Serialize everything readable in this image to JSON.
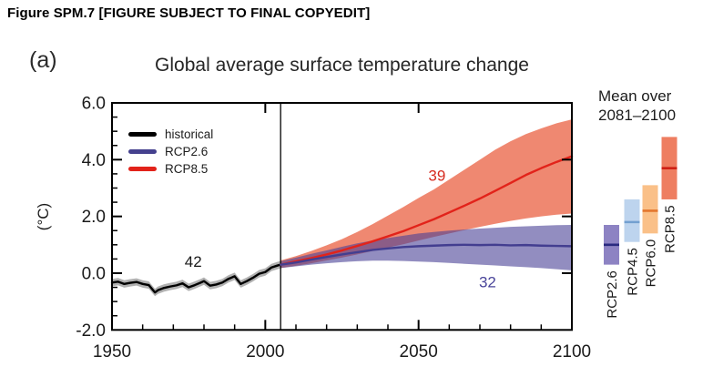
{
  "header": "Figure SPM.7 [FIGURE SUBJECT TO FINAL COPYEDIT]",
  "panel_label": "(a)",
  "chart_data": {
    "type": "line",
    "title": "Global average surface temperature change",
    "ylabel": "(°C)",
    "xlim": [
      1950,
      2100
    ],
    "ylim": [
      -2.0,
      6.0
    ],
    "x_ticks_major": [
      1950,
      2000,
      2050,
      2100
    ],
    "x_tick_labels": [
      "1950",
      "2000",
      "2050",
      "2100"
    ],
    "x_minor_step": 10,
    "y_ticks_major": [
      -2.0,
      0.0,
      2.0,
      4.0,
      6.0
    ],
    "y_tick_labels": [
      "-2.0",
      "0.0",
      "2.0",
      "4.0",
      "6.0"
    ],
    "y_minor_step": 0.5,
    "divider_year": 2005,
    "grid": false,
    "legend_position": "top-left-inside",
    "legend": [
      {
        "label": "historical",
        "color": "#000000"
      },
      {
        "label": "RCP2.6",
        "color": "#45418e"
      },
      {
        "label": "RCP8.5",
        "color": "#e2231a"
      }
    ],
    "series": [
      {
        "name": "historical",
        "line_color": "#000000",
        "band_color": "#b1b1b1",
        "band_half_width": 0.13,
        "x": [
          1950,
          1952,
          1954,
          1956,
          1958,
          1960,
          1962,
          1964,
          1965,
          1967,
          1969,
          1971,
          1973,
          1975,
          1977,
          1979,
          1980,
          1982,
          1984,
          1986,
          1988,
          1990,
          1992,
          1994,
          1996,
          1998,
          2000,
          2002,
          2004,
          2005
        ],
        "y": [
          -0.33,
          -0.3,
          -0.38,
          -0.34,
          -0.31,
          -0.38,
          -0.42,
          -0.68,
          -0.6,
          -0.52,
          -0.47,
          -0.43,
          -0.36,
          -0.5,
          -0.42,
          -0.33,
          -0.28,
          -0.44,
          -0.4,
          -0.33,
          -0.2,
          -0.11,
          -0.38,
          -0.28,
          -0.16,
          -0.02,
          0.04,
          0.2,
          0.27,
          0.3
        ]
      },
      {
        "name": "RCP8.5",
        "line_color": "#e2231a",
        "band_color": "rgba(233,90,58,0.72)",
        "x": [
          2005,
          2010,
          2015,
          2020,
          2025,
          2030,
          2035,
          2040,
          2045,
          2050,
          2055,
          2060,
          2065,
          2070,
          2075,
          2080,
          2085,
          2090,
          2095,
          2100
        ],
        "y": [
          0.3,
          0.42,
          0.53,
          0.66,
          0.8,
          0.96,
          1.12,
          1.3,
          1.48,
          1.69,
          1.9,
          2.14,
          2.38,
          2.63,
          2.9,
          3.18,
          3.46,
          3.7,
          3.92,
          4.12
        ],
        "band_upper": [
          0.45,
          0.6,
          0.78,
          0.98,
          1.2,
          1.45,
          1.73,
          2.03,
          2.33,
          2.65,
          2.95,
          3.3,
          3.65,
          4.0,
          4.35,
          4.65,
          4.9,
          5.1,
          5.28,
          5.42
        ],
        "band_lower": [
          0.18,
          0.26,
          0.35,
          0.45,
          0.55,
          0.66,
          0.78,
          0.9,
          1.02,
          1.15,
          1.28,
          1.4,
          1.52,
          1.63,
          1.74,
          1.84,
          1.93,
          2.0,
          2.06,
          2.1
        ]
      },
      {
        "name": "RCP2.6",
        "line_color": "#433e90",
        "band_color": "rgba(73,65,150,0.60)",
        "x": [
          2005,
          2010,
          2015,
          2020,
          2025,
          2030,
          2035,
          2040,
          2045,
          2050,
          2055,
          2060,
          2065,
          2070,
          2075,
          2080,
          2085,
          2090,
          2095,
          2100
        ],
        "y": [
          0.3,
          0.38,
          0.48,
          0.57,
          0.66,
          0.74,
          0.82,
          0.87,
          0.92,
          0.95,
          0.97,
          0.99,
          1.0,
          0.99,
          1.0,
          0.98,
          0.99,
          0.97,
          0.96,
          0.95
        ],
        "band_upper": [
          0.42,
          0.55,
          0.68,
          0.8,
          0.93,
          1.05,
          1.15,
          1.24,
          1.32,
          1.4,
          1.45,
          1.5,
          1.54,
          1.57,
          1.6,
          1.63,
          1.65,
          1.67,
          1.69,
          1.7
        ],
        "band_lower": [
          0.18,
          0.24,
          0.3,
          0.35,
          0.39,
          0.42,
          0.44,
          0.44,
          0.43,
          0.41,
          0.39,
          0.36,
          0.33,
          0.3,
          0.27,
          0.24,
          0.21,
          0.18,
          0.14,
          0.1
        ]
      }
    ],
    "annotations": [
      {
        "text": "42",
        "color": "#1a1a1a",
        "year": 1976.5,
        "value": 0.42
      },
      {
        "text": "39",
        "color": "#d62b1f",
        "year": 2056.0,
        "value": 3.45
      },
      {
        "text": "32",
        "color": "#4a459a",
        "year": 2072.5,
        "value": -0.3
      }
    ],
    "side_panel": {
      "title_line1": "Mean over",
      "title_line2": "2081–2100",
      "bars": [
        {
          "label": "RCP2.6",
          "low": 0.3,
          "high": 1.7,
          "mean": 1.0,
          "fill": "#8d83c3",
          "line": "#2a2a80"
        },
        {
          "label": "RCP4.5",
          "low": 1.1,
          "high": 2.6,
          "mean": 1.8,
          "fill": "#bdd4ee",
          "line": "#73a0d0"
        },
        {
          "label": "RCP6.0",
          "low": 1.4,
          "high": 3.1,
          "mean": 2.2,
          "fill": "#fac088",
          "line": "#e3772e"
        },
        {
          "label": "RCP8.5",
          "low": 2.6,
          "high": 4.8,
          "mean": 3.7,
          "fill": "#ee7e61",
          "line": "#cf2015"
        }
      ]
    }
  }
}
